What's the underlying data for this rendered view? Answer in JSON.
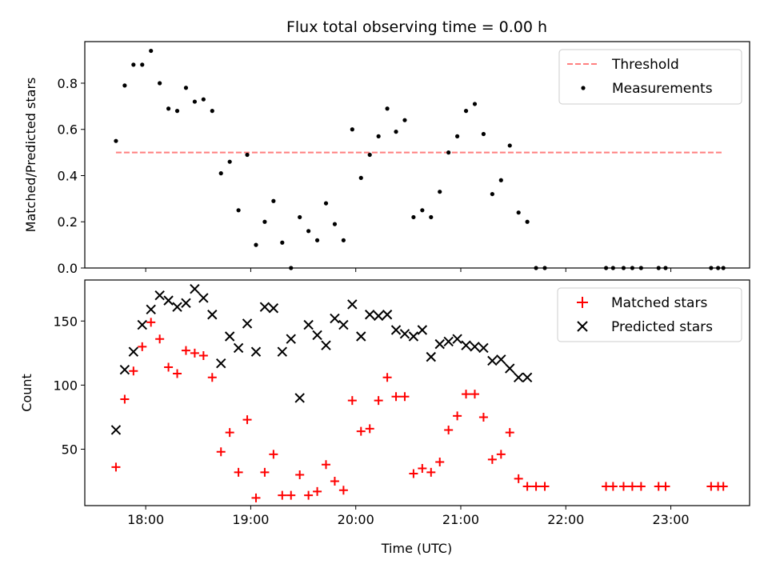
{
  "figure": {
    "title": "Flux total observing time = 0.00 h",
    "xlabel": "Time (UTC)",
    "xticks": [
      "18:00",
      "19:00",
      "20:00",
      "21:00",
      "22:00",
      "23:00"
    ],
    "xlim_hours": [
      17.42,
      23.75
    ]
  },
  "chart_data": [
    {
      "type": "scatter",
      "ylabel": "Matched/Predicted stars",
      "ylim": [
        0,
        0.98
      ],
      "yticks": [
        0.0,
        0.2,
        0.4,
        0.6,
        0.8
      ],
      "legend_position": "top-right",
      "colors": {
        "threshold": "#ff7f7f",
        "measurements": "#000000"
      },
      "threshold": {
        "name": "Threshold",
        "y": 0.5,
        "x_start": "17:43",
        "x_end": "23:30"
      },
      "series": [
        {
          "name": "Measurements",
          "x": [
            "17:43",
            "17:48",
            "17:53",
            "17:58",
            "18:03",
            "18:08",
            "18:13",
            "18:18",
            "18:23",
            "18:28",
            "18:33",
            "18:38",
            "18:43",
            "18:48",
            "18:53",
            "18:58",
            "19:03",
            "19:08",
            "19:13",
            "19:18",
            "19:23",
            "19:28",
            "19:33",
            "19:38",
            "19:43",
            "19:48",
            "19:53",
            "19:58",
            "20:03",
            "20:08",
            "20:13",
            "20:18",
            "20:23",
            "20:28",
            "20:33",
            "20:38",
            "20:43",
            "20:48",
            "20:53",
            "20:58",
            "21:03",
            "21:08",
            "21:13",
            "21:18",
            "21:23",
            "21:28",
            "21:33",
            "21:38",
            "21:43",
            "21:48",
            "22:23",
            "22:27",
            "22:33",
            "22:38",
            "22:43",
            "22:53",
            "22:57",
            "23:23",
            "23:27",
            "23:30"
          ],
          "y": [
            0.55,
            0.79,
            0.88,
            0.88,
            0.94,
            0.8,
            0.69,
            0.68,
            0.78,
            0.72,
            0.73,
            0.68,
            0.41,
            0.46,
            0.25,
            0.49,
            0.1,
            0.2,
            0.29,
            0.11,
            0.0,
            0.22,
            0.16,
            0.12,
            0.28,
            0.19,
            0.12,
            0.6,
            0.39,
            0.49,
            0.57,
            0.69,
            0.59,
            0.64,
            0.22,
            0.25,
            0.22,
            0.33,
            0.5,
            0.57,
            0.68,
            0.71,
            0.58,
            0.32,
            0.38,
            0.53,
            0.24,
            0.2,
            0.0,
            0.0,
            0.0,
            0.0,
            0.0,
            0.0,
            0.0,
            0.0,
            0.0,
            0.0,
            0.0,
            0.0
          ]
        }
      ]
    },
    {
      "type": "scatter",
      "ylabel": "Count",
      "ylim": [
        6,
        182
      ],
      "yticks": [
        50,
        100,
        150
      ],
      "legend_position": "top-right",
      "colors": {
        "matched": "#ff0000",
        "predicted": "#000000"
      },
      "series": [
        {
          "name": "Matched stars",
          "marker": "plus",
          "x": [
            "17:43",
            "17:48",
            "17:53",
            "17:58",
            "18:03",
            "18:08",
            "18:13",
            "18:18",
            "18:23",
            "18:28",
            "18:33",
            "18:38",
            "18:43",
            "18:48",
            "18:53",
            "18:58",
            "19:03",
            "19:08",
            "19:13",
            "19:18",
            "19:23",
            "19:28",
            "19:33",
            "19:38",
            "19:43",
            "19:48",
            "19:53",
            "19:58",
            "20:03",
            "20:08",
            "20:13",
            "20:18",
            "20:23",
            "20:28",
            "20:33",
            "20:38",
            "20:43",
            "20:48",
            "20:53",
            "20:58",
            "21:03",
            "21:08",
            "21:13",
            "21:18",
            "21:23",
            "21:28",
            "21:33",
            "21:38",
            "21:43",
            "21:48",
            "22:23",
            "22:27",
            "22:33",
            "22:38",
            "22:43",
            "22:53",
            "22:57",
            "23:23",
            "23:27",
            "23:30"
          ],
          "y": [
            36,
            89,
            111,
            130,
            149,
            136,
            114,
            109,
            127,
            125,
            123,
            106,
            48,
            63,
            32,
            73,
            12,
            32,
            46,
            14,
            14,
            30,
            14,
            17,
            38,
            25,
            18,
            88,
            64,
            66,
            88,
            106,
            91,
            91,
            31,
            35,
            32,
            40,
            65,
            76,
            93,
            93,
            75,
            42,
            46,
            63,
            27,
            21,
            21,
            21,
            21,
            21,
            21,
            21,
            21,
            21,
            21,
            21,
            21,
            21
          ]
        },
        {
          "name": "Predicted stars",
          "marker": "x",
          "x": [
            "17:43",
            "17:48",
            "17:53",
            "17:58",
            "18:03",
            "18:08",
            "18:13",
            "18:18",
            "18:23",
            "18:28",
            "18:33",
            "18:38",
            "18:43",
            "18:48",
            "18:53",
            "18:58",
            "19:03",
            "19:08",
            "19:13",
            "19:18",
            "19:23",
            "19:28",
            "19:33",
            "19:38",
            "19:43",
            "19:48",
            "19:53",
            "19:58",
            "20:03",
            "20:08",
            "20:13",
            "20:18",
            "20:23",
            "20:28",
            "20:33",
            "20:38",
            "20:43",
            "20:48",
            "20:53",
            "20:58",
            "21:03",
            "21:08",
            "21:13",
            "21:18",
            "21:23",
            "21:28",
            "21:33",
            "21:38"
          ],
          "y": [
            65,
            112,
            126,
            147,
            159,
            170,
            166,
            161,
            164,
            175,
            168,
            155,
            117,
            138,
            129,
            148,
            126,
            161,
            160,
            126,
            136,
            90,
            147,
            139,
            131,
            152,
            147,
            163,
            138,
            155,
            154,
            155,
            143,
            140,
            138,
            143,
            122,
            132,
            134,
            136,
            131,
            130,
            129,
            119,
            120,
            113,
            106,
            106
          ]
        }
      ]
    }
  ]
}
